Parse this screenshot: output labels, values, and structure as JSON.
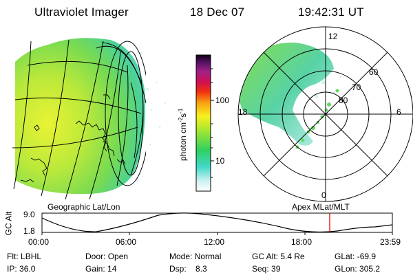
{
  "header": {
    "title": "Ultraviolet Imager",
    "date": "18 Dec 07",
    "time": "19:42:31 UT"
  },
  "colorbar": {
    "label": "photon cm",
    "label_sup1": "-2",
    "label_s": "s",
    "label_sup2": "-1",
    "ticks": [
      "100",
      "10"
    ]
  },
  "left_panel": {
    "caption": "Geographic Lat/Lon"
  },
  "right_panel": {
    "caption": "Apex MLat/MLT",
    "mlt_labels": {
      "top": "12",
      "bottom": "0",
      "left": "18",
      "right": "6"
    },
    "lat_labels": [
      "60",
      "70",
      "80"
    ]
  },
  "altitude_plot": {
    "ylabel": "GC Alt",
    "yticks": [
      "9.0",
      "1.8"
    ],
    "xticks": [
      "00:00",
      "06:00",
      "12:00",
      "18:00",
      "23:59"
    ],
    "marker_time": "19:42",
    "marker_color": "#e00000"
  },
  "status": {
    "row1": [
      {
        "k": "Flt:",
        "v": "LBHL"
      },
      {
        "k": "Door:",
        "v": "Open"
      },
      {
        "k": "Mode:",
        "v": "Normal"
      },
      {
        "k": "GC Alt:",
        "v": "5.4 Re"
      },
      {
        "k": "GLat:",
        "v": "-69.9"
      }
    ],
    "row2": [
      {
        "k": "IP:",
        "v": "36.0"
      },
      {
        "k": "Gain:",
        "v": "14"
      },
      {
        "k": "Dsp:",
        "v": "8.3"
      },
      {
        "k": "Seq:",
        "v": "39"
      },
      {
        "k": "GLon:",
        "v": "305.2"
      }
    ]
  }
}
